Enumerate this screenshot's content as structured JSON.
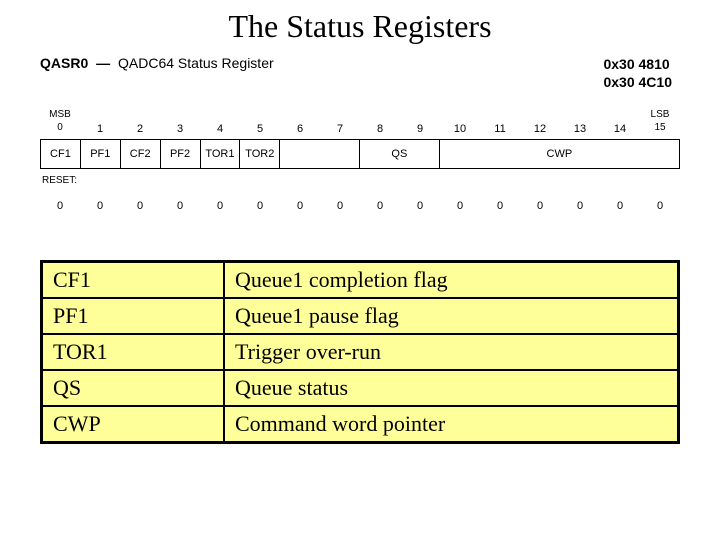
{
  "title": "The Status Registers",
  "register": {
    "name": "QASR0",
    "dash": "—",
    "description": "QADC64 Status Register",
    "addresses": [
      "0x30 4810",
      "0x30 4C10"
    ],
    "msb_label": "MSB",
    "lsb_label": "LSB",
    "bit_numbers": [
      "0",
      "1",
      "2",
      "3",
      "4",
      "5",
      "6",
      "7",
      "8",
      "9",
      "10",
      "11",
      "12",
      "13",
      "14",
      "15"
    ],
    "bit_grid_cols": "1fr 1fr 1fr 1fr 1fr 1fr 2fr 2fr 6fr",
    "bit_fields": [
      {
        "label": "CF1",
        "span": 1
      },
      {
        "label": "PF1",
        "span": 1
      },
      {
        "label": "CF2",
        "span": 1
      },
      {
        "label": "PF2",
        "span": 1
      },
      {
        "label": "TOR1",
        "span": 1
      },
      {
        "label": "TOR2",
        "span": 1
      },
      {
        "label": "",
        "span": 2
      },
      {
        "label": "QS",
        "span": 2
      },
      {
        "label": "CWP",
        "span": 6
      }
    ],
    "reset_label": "RESET:",
    "reset_values": [
      "0",
      "0",
      "0",
      "0",
      "0",
      "0",
      "0",
      "0",
      "0",
      "0",
      "0",
      "0",
      "0",
      "0",
      "0",
      "0"
    ]
  },
  "definitions": [
    {
      "term": "CF1",
      "desc": "Queue1 completion flag"
    },
    {
      "term": "PF1",
      "desc": "Queue1 pause flag"
    },
    {
      "term": "TOR1",
      "desc": "Trigger over-run"
    },
    {
      "term": "QS",
      "desc": "Queue status"
    },
    {
      "term": "CWP",
      "desc": "Command word pointer"
    }
  ],
  "colors": {
    "table_bg": "#ffff99",
    "border": "#000000",
    "page_bg": "#ffffff"
  }
}
